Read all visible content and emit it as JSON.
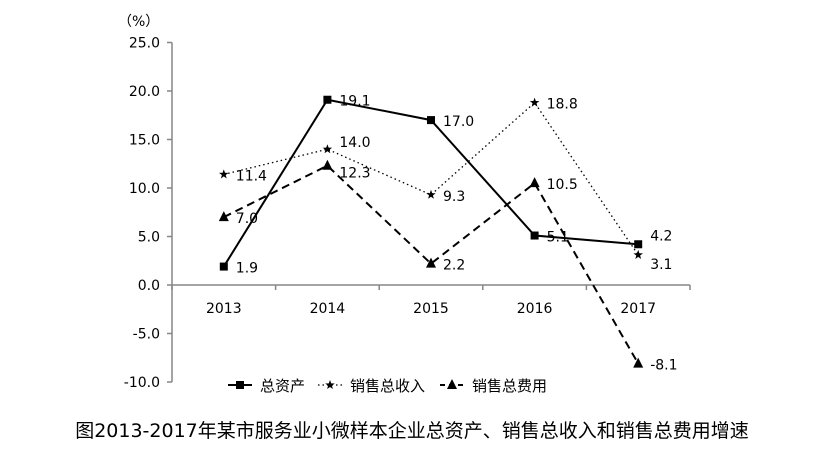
{
  "chart_data": {
    "type": "line",
    "title": "图2013-2017年某市服务业小微样本企业总资产、销售总收入和销售总费用增速",
    "ylabel": "（%）",
    "xlabel": "",
    "categories": [
      "2013",
      "2014",
      "2015",
      "2016",
      "2017"
    ],
    "ylim": [
      -10,
      25
    ],
    "yticks": [
      "25.0",
      "20.0",
      "15.0",
      "10.0",
      "5.0",
      "0.0",
      "-5.0",
      "-10.0"
    ],
    "grid": false,
    "legend_position": "bottom",
    "series": [
      {
        "name": "总资产",
        "values": [
          1.9,
          19.1,
          17.0,
          5.1,
          4.2
        ],
        "labels": [
          "1.9",
          "19.1",
          "17.0",
          "5.1",
          "4.2"
        ],
        "style": "solid",
        "marker": "square",
        "color": "#000000"
      },
      {
        "name": "销售总收入",
        "values": [
          11.4,
          14.0,
          9.3,
          18.8,
          3.1
        ],
        "labels": [
          "11.4",
          "14.0",
          "9.3",
          "18.8",
          "3.1"
        ],
        "style": "dotted",
        "marker": "star",
        "color": "#000000"
      },
      {
        "name": "销售总费用",
        "values": [
          7.0,
          12.3,
          2.2,
          10.5,
          -8.1
        ],
        "labels": [
          "7.0",
          "12.3",
          "2.2",
          "10.5",
          "-8.1"
        ],
        "style": "dashed",
        "marker": "triangle",
        "color": "#000000"
      }
    ]
  }
}
